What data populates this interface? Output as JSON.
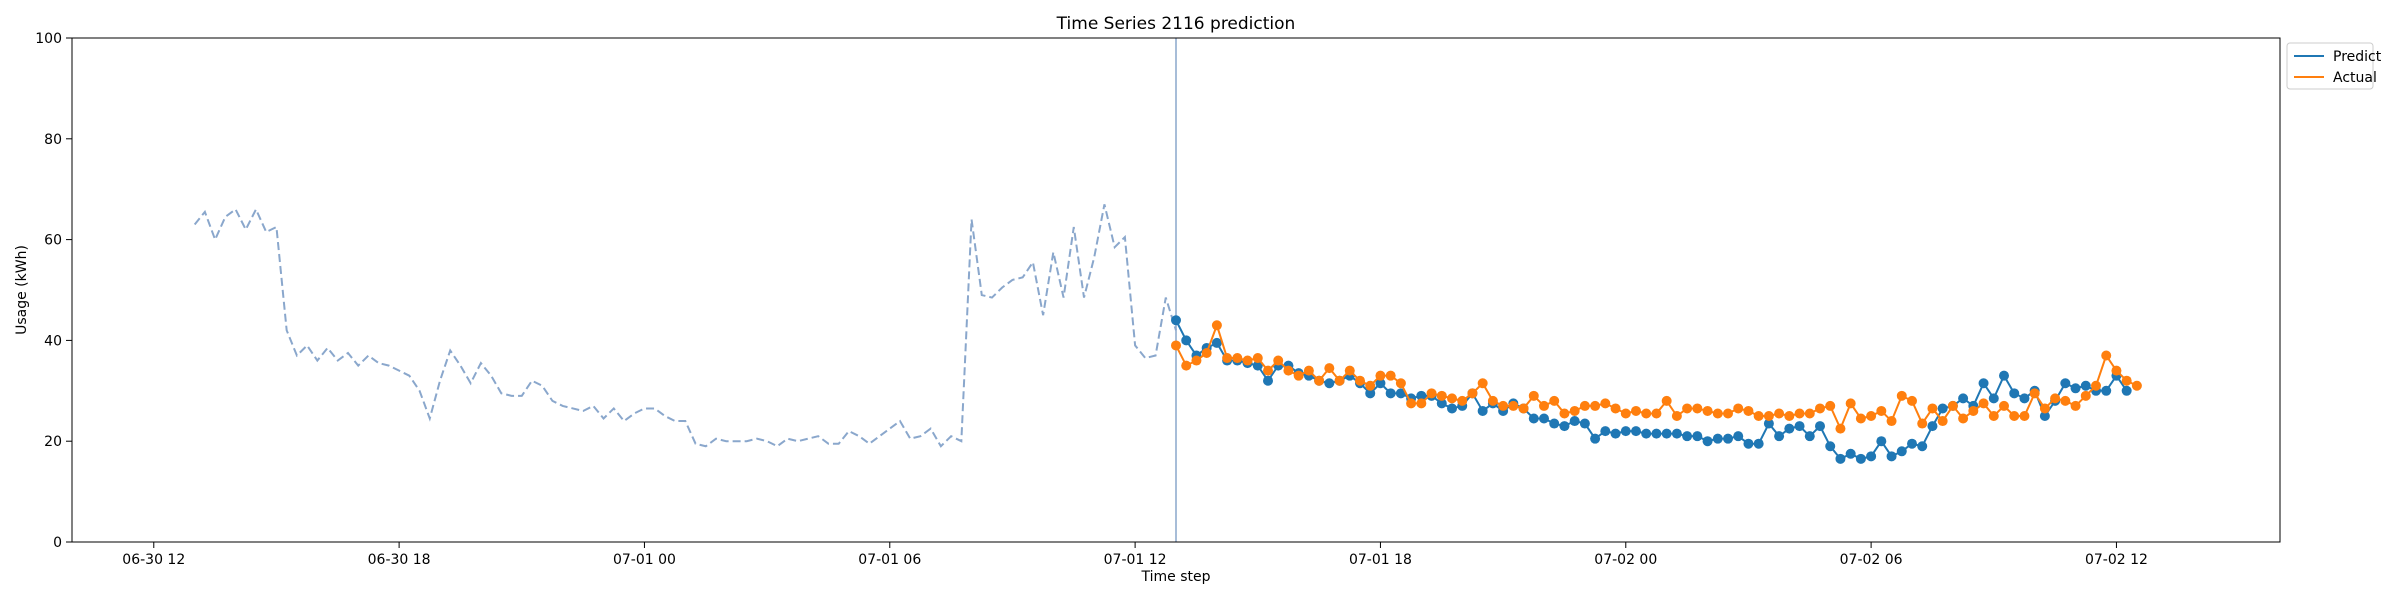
{
  "chart_data": {
    "type": "line",
    "title": "Time Series 2116 prediction",
    "xlabel": "Time step",
    "ylabel": "Usage (kWh)",
    "ylim": [
      0,
      100
    ],
    "yticks": [
      0,
      20,
      40,
      60,
      80,
      100
    ],
    "xlim": [
      "2024-06-30 10:00",
      "2024-07-02 16:00"
    ],
    "xticks": [
      {
        "t": "2024-06-30 12:00",
        "label": "06-30 12"
      },
      {
        "t": "2024-06-30 18:00",
        "label": "06-30 18"
      },
      {
        "t": "2024-07-01 00:00",
        "label": "07-01 00"
      },
      {
        "t": "2024-07-01 06:00",
        "label": "07-01 06"
      },
      {
        "t": "2024-07-01 12:00",
        "label": "07-01 12"
      },
      {
        "t": "2024-07-01 18:00",
        "label": "07-01 18"
      },
      {
        "t": "2024-07-02 00:00",
        "label": "07-02 00"
      },
      {
        "t": "2024-07-02 06:00",
        "label": "07-02 06"
      },
      {
        "t": "2024-07-02 12:00",
        "label": "07-02 12"
      }
    ],
    "forecast_start": "2024-07-01 13:00",
    "grid": false,
    "legend_position": "upper-right-outside",
    "colors": {
      "predict": "#1f77b4",
      "actual": "#ff7f0e",
      "history": "#8aa7cc",
      "divider": "#8aa7cc"
    },
    "history": {
      "start": "2024-06-30 13:00",
      "step_minutes": 15,
      "values": [
        63,
        65.5,
        60,
        64.5,
        66,
        62,
        66,
        61.5,
        62.5,
        42,
        37,
        39,
        36,
        38.5,
        36,
        37.5,
        35,
        37,
        35.5,
        35,
        34,
        33,
        30,
        24.5,
        32,
        38,
        35,
        31.5,
        35.5,
        33,
        29.5,
        29,
        29,
        32,
        31,
        28,
        27,
        26.5,
        26,
        27,
        24.5,
        26.5,
        24,
        25.5,
        26.5,
        26.5,
        25,
        24,
        24,
        19.5,
        19,
        20.5,
        20,
        20,
        20,
        20.5,
        20,
        19,
        20.5,
        20,
        20.5,
        21,
        19.5,
        19.5,
        22,
        21,
        19.5,
        21,
        22.5,
        24,
        20.5,
        21,
        22.5,
        19,
        21,
        20,
        64,
        49,
        48.5,
        50.5,
        52,
        52.5,
        55.5,
        45,
        57.5,
        48.5,
        62.5,
        48.5,
        56.5,
        67,
        58.5,
        60.5,
        39,
        36.5,
        37,
        48.5,
        42
      ]
    },
    "series": [
      {
        "name": "Predict",
        "start": "2024-07-01 13:00",
        "step_minutes": 15,
        "values": [
          44,
          40,
          37,
          38.5,
          39.5,
          36,
          36,
          35.5,
          35,
          32,
          35,
          35,
          33.5,
          33,
          32,
          31.5,
          32,
          33,
          31.5,
          29.5,
          31.5,
          29.5,
          29.5,
          28.5,
          29,
          29,
          27.5,
          26.5,
          27,
          29.5,
          26,
          27.5,
          26,
          27.5,
          26.5,
          24.5,
          24.5,
          23.5,
          23,
          24,
          23.5,
          20.5,
          22,
          21.5,
          22,
          22,
          21.5,
          21.5,
          21.5,
          21.5,
          21,
          21,
          20,
          20.5,
          20.5,
          21,
          19.5,
          19.5,
          23.5,
          21,
          22.5,
          23,
          21,
          23,
          19,
          16.5,
          17.5,
          16.5,
          17,
          20,
          17,
          18,
          19.5,
          19,
          23,
          26.5,
          27,
          28.5,
          27,
          31.5,
          28.5,
          33,
          29.5,
          28.5,
          30,
          25,
          28,
          31.5,
          30.5,
          31,
          30,
          30,
          33,
          30
        ]
      },
      {
        "name": "Actual",
        "start": "2024-07-01 13:00",
        "step_minutes": 15,
        "values": [
          39,
          35,
          36,
          37.5,
          43,
          36.5,
          36.5,
          36,
          36.5,
          34,
          36,
          34,
          33,
          34,
          32,
          34.5,
          32,
          34,
          32,
          31,
          33,
          33,
          31.5,
          27.5,
          27.5,
          29.5,
          29,
          28.5,
          28,
          29.5,
          31.5,
          28,
          27,
          27,
          26.5,
          29,
          27,
          28,
          25.5,
          26,
          27,
          27,
          27.5,
          26.5,
          25.5,
          26,
          25.5,
          25.5,
          28,
          25,
          26.5,
          26.5,
          26,
          25.5,
          25.5,
          26.5,
          26,
          25,
          25,
          25.5,
          25,
          25.5,
          25.5,
          26.5,
          27,
          22.5,
          27.5,
          24.5,
          25,
          26,
          24,
          29,
          28,
          23.5,
          26.5,
          24,
          27,
          24.5,
          26,
          27.5,
          25,
          27,
          25,
          25,
          29.5,
          26.5,
          28.5,
          28,
          27,
          29,
          31,
          37,
          34,
          32,
          31
        ]
      }
    ]
  }
}
